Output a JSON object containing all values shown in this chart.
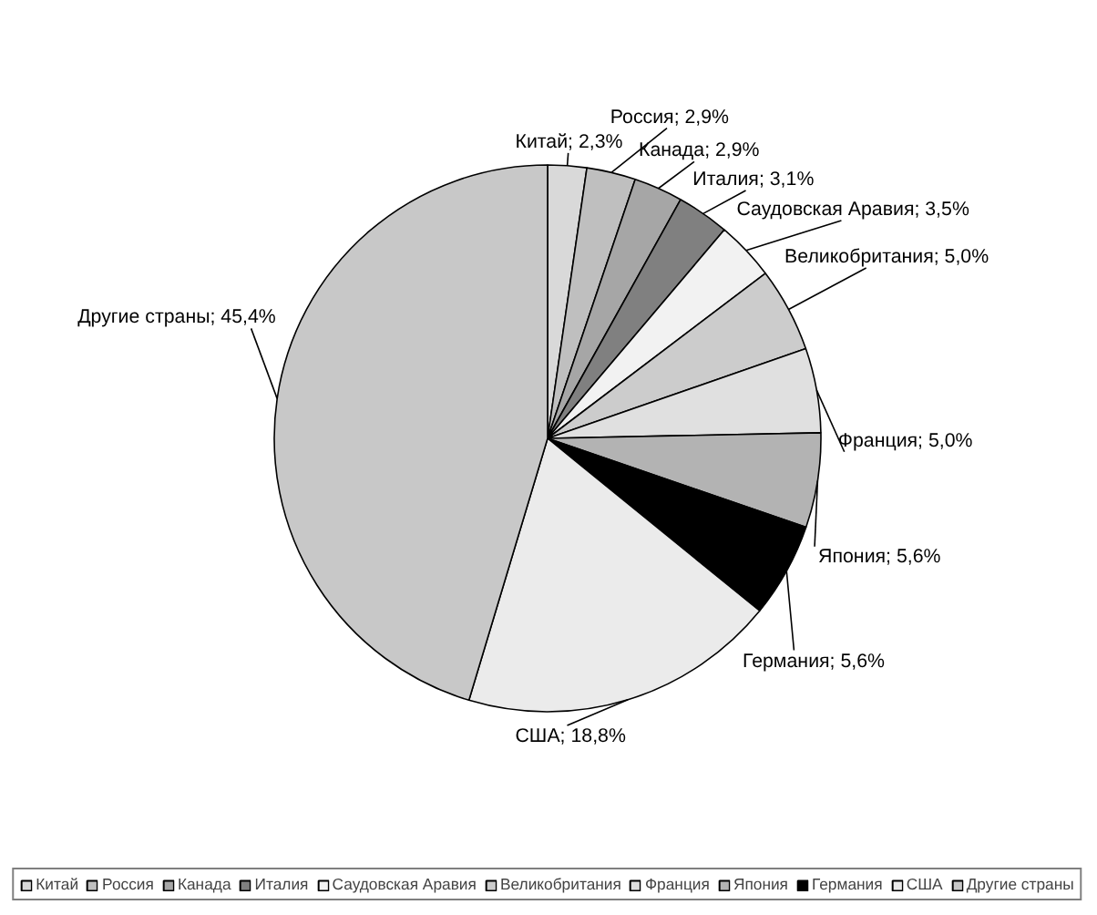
{
  "chart_data": {
    "type": "pie",
    "categories": [
      "Китай",
      "Россия",
      "Канада",
      "Италия",
      "Саудовская Аравия",
      "Великобритания",
      "Франция",
      "Япония",
      "Германия",
      "США",
      "Другие страны"
    ],
    "values": [
      2.3,
      2.9,
      2.9,
      3.1,
      3.5,
      5.0,
      5.0,
      5.6,
      5.6,
      18.8,
      45.4
    ],
    "value_labels": [
      "Китай; 2,3%",
      "Россия; 2,9%",
      "Канада; 2,9%",
      "Италия; 3,1%",
      "Саудовская Аравия; 3,5%",
      "Великобритания; 5,0%",
      "Франция; 5,0%",
      "Япония; 5,6%",
      "Германия; 5,6%",
      "США; 18,8%",
      "Другие страны; 45,4%"
    ],
    "colors": [
      "#d9d9d9",
      "#bfbfbf",
      "#a6a6a6",
      "#808080",
      "#f2f2f2",
      "#cccccc",
      "#e0e0e0",
      "#b3b3b3",
      "#000000",
      "#ebebeb",
      "#c8c8c8"
    ],
    "legend": "bottom"
  }
}
